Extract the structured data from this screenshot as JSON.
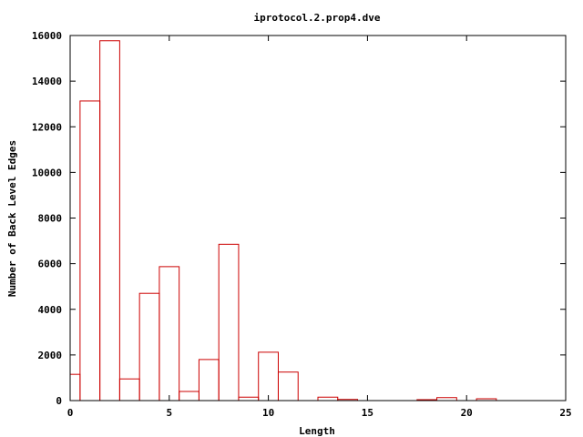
{
  "chart_data": {
    "type": "bar",
    "title": "iprotocol.2.prop4.dve",
    "xlabel": "Length",
    "ylabel": "Number of Back Level Edges",
    "xlim": [
      0,
      25
    ],
    "ylim": [
      0,
      16000
    ],
    "xticks": [
      0,
      5,
      10,
      15,
      20,
      25
    ],
    "yticks": [
      0,
      2000,
      4000,
      6000,
      8000,
      10000,
      12000,
      14000,
      16000
    ],
    "grid": false,
    "legend": "none",
    "bar_color": "#cc0000",
    "bar_width": 1,
    "x": [
      0,
      1,
      2,
      3,
      4,
      5,
      6,
      7,
      8,
      9,
      10,
      11,
      12,
      13,
      14,
      15,
      16,
      17,
      18,
      19,
      20,
      21
    ],
    "values": [
      1150,
      13130,
      15770,
      950,
      4700,
      5870,
      400,
      1800,
      6850,
      150,
      2120,
      1250,
      0,
      150,
      50,
      0,
      0,
      0,
      40,
      130,
      0,
      80
    ]
  }
}
